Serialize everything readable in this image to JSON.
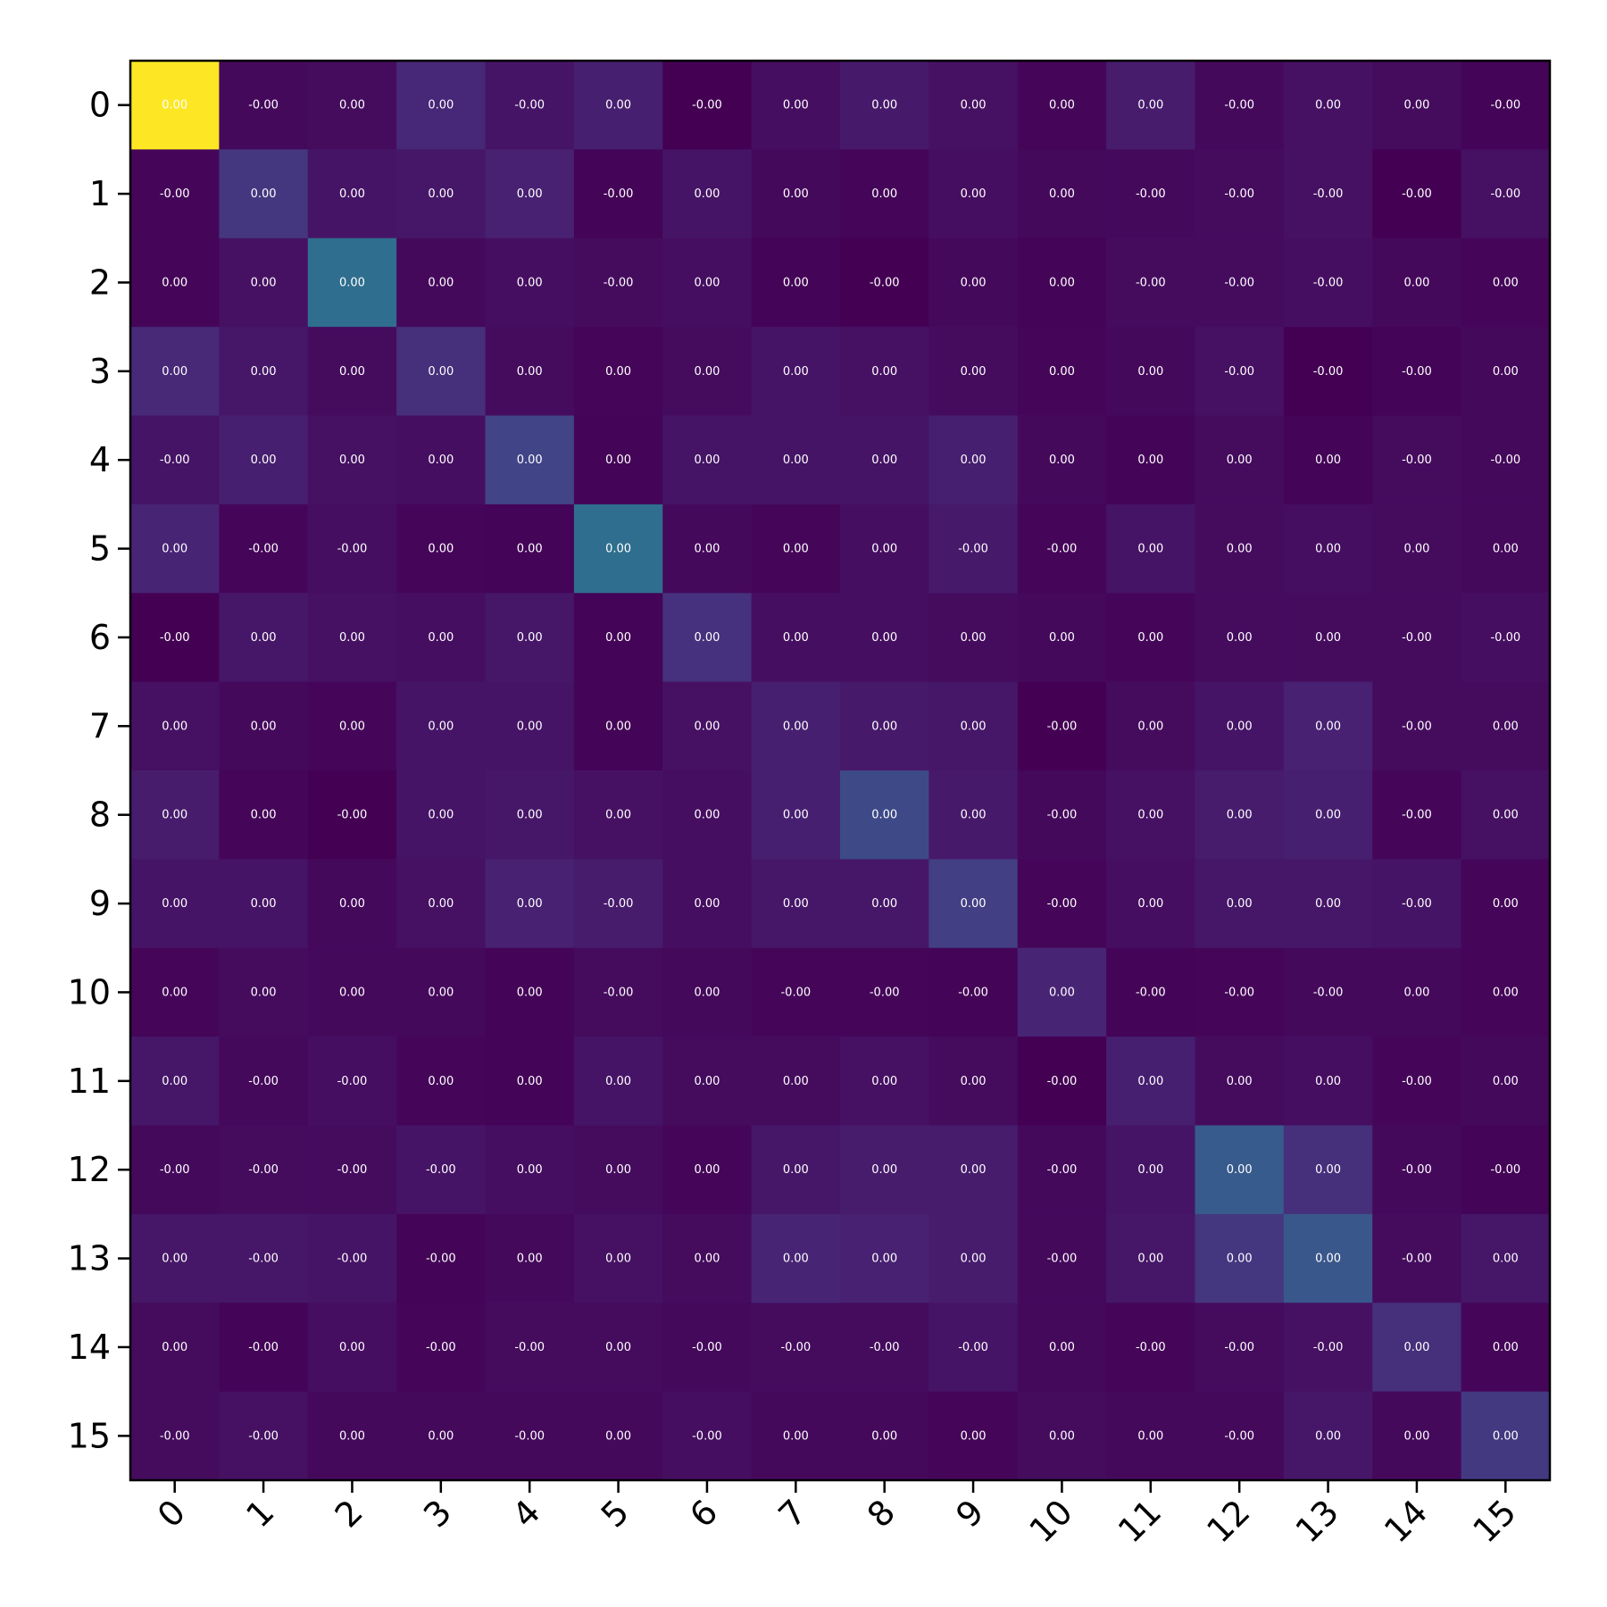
{
  "chart_data": {
    "type": "heatmap",
    "title": "",
    "xlabel": "",
    "ylabel": "",
    "colormap": "viridis",
    "color_range": [
      0,
      1
    ],
    "grid": false,
    "colorbar": false,
    "x_tick_rotation_deg": 45,
    "x_categories": [
      "0",
      "1",
      "2",
      "3",
      "4",
      "5",
      "6",
      "7",
      "8",
      "9",
      "10",
      "11",
      "12",
      "13",
      "14",
      "15"
    ],
    "y_categories": [
      "0",
      "1",
      "2",
      "3",
      "4",
      "5",
      "6",
      "7",
      "8",
      "9",
      "10",
      "11",
      "12",
      "13",
      "14",
      "15"
    ],
    "intensity": [
      [
        1.0,
        0.03,
        0.04,
        0.14,
        0.07,
        0.11,
        0.0,
        0.05,
        0.09,
        0.06,
        0.02,
        0.1,
        0.03,
        0.06,
        0.04,
        0.01
      ],
      [
        0.02,
        0.2,
        0.07,
        0.08,
        0.12,
        0.01,
        0.07,
        0.03,
        0.02,
        0.05,
        0.03,
        0.03,
        0.04,
        0.06,
        0.0,
        0.06
      ],
      [
        0.02,
        0.06,
        0.45,
        0.03,
        0.05,
        0.04,
        0.05,
        0.01,
        0.0,
        0.03,
        0.01,
        0.04,
        0.04,
        0.05,
        0.03,
        0.02
      ],
      [
        0.15,
        0.08,
        0.04,
        0.17,
        0.04,
        0.02,
        0.04,
        0.07,
        0.06,
        0.04,
        0.02,
        0.03,
        0.06,
        0.0,
        0.01,
        0.03
      ],
      [
        0.07,
        0.11,
        0.06,
        0.05,
        0.25,
        0.01,
        0.07,
        0.07,
        0.07,
        0.11,
        0.03,
        0.01,
        0.04,
        0.01,
        0.04,
        0.03
      ],
      [
        0.13,
        0.02,
        0.05,
        0.02,
        0.01,
        0.45,
        0.03,
        0.02,
        0.05,
        0.09,
        0.02,
        0.07,
        0.04,
        0.05,
        0.04,
        0.03
      ],
      [
        0.0,
        0.08,
        0.06,
        0.05,
        0.08,
        0.01,
        0.18,
        0.05,
        0.05,
        0.04,
        0.03,
        0.02,
        0.04,
        0.04,
        0.04,
        0.05
      ],
      [
        0.06,
        0.03,
        0.02,
        0.07,
        0.07,
        0.01,
        0.06,
        0.11,
        0.09,
        0.08,
        0.0,
        0.04,
        0.07,
        0.12,
        0.04,
        0.04
      ],
      [
        0.1,
        0.02,
        0.0,
        0.07,
        0.08,
        0.06,
        0.05,
        0.11,
        0.28,
        0.09,
        0.03,
        0.06,
        0.1,
        0.11,
        0.02,
        0.06
      ],
      [
        0.07,
        0.07,
        0.03,
        0.06,
        0.12,
        0.1,
        0.05,
        0.08,
        0.08,
        0.23,
        0.02,
        0.05,
        0.08,
        0.08,
        0.07,
        0.02
      ],
      [
        0.02,
        0.04,
        0.03,
        0.03,
        0.01,
        0.04,
        0.03,
        0.02,
        0.02,
        0.01,
        0.13,
        0.01,
        0.02,
        0.03,
        0.03,
        0.02
      ],
      [
        0.08,
        0.03,
        0.05,
        0.02,
        0.01,
        0.07,
        0.04,
        0.04,
        0.06,
        0.04,
        0.0,
        0.11,
        0.04,
        0.05,
        0.02,
        0.03
      ],
      [
        0.03,
        0.04,
        0.04,
        0.07,
        0.05,
        0.04,
        0.02,
        0.08,
        0.1,
        0.1,
        0.03,
        0.07,
        0.36,
        0.17,
        0.03,
        0.01
      ],
      [
        0.08,
        0.08,
        0.07,
        0.01,
        0.03,
        0.06,
        0.04,
        0.13,
        0.12,
        0.1,
        0.03,
        0.08,
        0.2,
        0.34,
        0.04,
        0.08
      ],
      [
        0.04,
        0.01,
        0.05,
        0.02,
        0.04,
        0.04,
        0.03,
        0.04,
        0.04,
        0.07,
        0.03,
        0.02,
        0.04,
        0.06,
        0.17,
        0.02
      ],
      [
        0.04,
        0.06,
        0.03,
        0.03,
        0.03,
        0.03,
        0.05,
        0.03,
        0.03,
        0.02,
        0.04,
        0.03,
        0.03,
        0.08,
        0.03,
        0.21
      ]
    ],
    "cell_labels": [
      [
        "0.00",
        "-0.00",
        "0.00",
        "0.00",
        "-0.00",
        "0.00",
        "-0.00",
        "0.00",
        "0.00",
        "0.00",
        "0.00",
        "0.00",
        "-0.00",
        "0.00",
        "0.00",
        "-0.00"
      ],
      [
        "-0.00",
        "0.00",
        "0.00",
        "0.00",
        "0.00",
        "-0.00",
        "0.00",
        "0.00",
        "0.00",
        "0.00",
        "0.00",
        "-0.00",
        "-0.00",
        "-0.00",
        "-0.00",
        "-0.00"
      ],
      [
        "0.00",
        "0.00",
        "0.00",
        "0.00",
        "0.00",
        "-0.00",
        "0.00",
        "0.00",
        "-0.00",
        "0.00",
        "0.00",
        "-0.00",
        "-0.00",
        "-0.00",
        "0.00",
        "0.00"
      ],
      [
        "0.00",
        "0.00",
        "0.00",
        "0.00",
        "0.00",
        "0.00",
        "0.00",
        "0.00",
        "0.00",
        "0.00",
        "0.00",
        "0.00",
        "-0.00",
        "-0.00",
        "-0.00",
        "0.00"
      ],
      [
        "-0.00",
        "0.00",
        "0.00",
        "0.00",
        "0.00",
        "0.00",
        "0.00",
        "0.00",
        "0.00",
        "0.00",
        "0.00",
        "0.00",
        "0.00",
        "0.00",
        "-0.00",
        "-0.00"
      ],
      [
        "0.00",
        "-0.00",
        "-0.00",
        "0.00",
        "0.00",
        "0.00",
        "0.00",
        "0.00",
        "0.00",
        "-0.00",
        "-0.00",
        "0.00",
        "0.00",
        "0.00",
        "0.00",
        "0.00"
      ],
      [
        "-0.00",
        "0.00",
        "0.00",
        "0.00",
        "0.00",
        "0.00",
        "0.00",
        "0.00",
        "0.00",
        "0.00",
        "0.00",
        "0.00",
        "0.00",
        "0.00",
        "-0.00",
        "-0.00"
      ],
      [
        "0.00",
        "0.00",
        "0.00",
        "0.00",
        "0.00",
        "0.00",
        "0.00",
        "0.00",
        "0.00",
        "0.00",
        "-0.00",
        "0.00",
        "0.00",
        "0.00",
        "-0.00",
        "0.00"
      ],
      [
        "0.00",
        "0.00",
        "-0.00",
        "0.00",
        "0.00",
        "0.00",
        "0.00",
        "0.00",
        "0.00",
        "0.00",
        "-0.00",
        "0.00",
        "0.00",
        "0.00",
        "-0.00",
        "0.00"
      ],
      [
        "0.00",
        "0.00",
        "0.00",
        "0.00",
        "0.00",
        "-0.00",
        "0.00",
        "0.00",
        "0.00",
        "0.00",
        "-0.00",
        "0.00",
        "0.00",
        "0.00",
        "-0.00",
        "0.00"
      ],
      [
        "0.00",
        "0.00",
        "0.00",
        "0.00",
        "0.00",
        "-0.00",
        "0.00",
        "-0.00",
        "-0.00",
        "-0.00",
        "0.00",
        "-0.00",
        "-0.00",
        "-0.00",
        "0.00",
        "0.00"
      ],
      [
        "0.00",
        "-0.00",
        "-0.00",
        "0.00",
        "0.00",
        "0.00",
        "0.00",
        "0.00",
        "0.00",
        "0.00",
        "-0.00",
        "0.00",
        "0.00",
        "0.00",
        "-0.00",
        "0.00"
      ],
      [
        "-0.00",
        "-0.00",
        "-0.00",
        "-0.00",
        "0.00",
        "0.00",
        "0.00",
        "0.00",
        "0.00",
        "0.00",
        "-0.00",
        "0.00",
        "0.00",
        "0.00",
        "-0.00",
        "-0.00"
      ],
      [
        "0.00",
        "-0.00",
        "-0.00",
        "-0.00",
        "0.00",
        "0.00",
        "0.00",
        "0.00",
        "0.00",
        "0.00",
        "-0.00",
        "0.00",
        "0.00",
        "0.00",
        "-0.00",
        "0.00"
      ],
      [
        "0.00",
        "-0.00",
        "0.00",
        "-0.00",
        "-0.00",
        "0.00",
        "-0.00",
        "-0.00",
        "-0.00",
        "-0.00",
        "0.00",
        "-0.00",
        "-0.00",
        "-0.00",
        "0.00",
        "0.00"
      ],
      [
        "-0.00",
        "-0.00",
        "0.00",
        "0.00",
        "-0.00",
        "0.00",
        "-0.00",
        "0.00",
        "0.00",
        "0.00",
        "0.00",
        "0.00",
        "-0.00",
        "0.00",
        "0.00",
        "0.00"
      ]
    ]
  }
}
